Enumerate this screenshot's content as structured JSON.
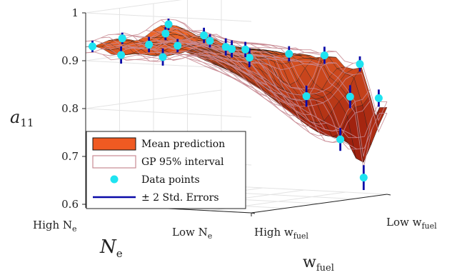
{
  "chart_data": {
    "type": "surface3d",
    "title": "",
    "z_axis": {
      "label_main": "a",
      "label_sub": "11",
      "ticks": [
        "1",
        "0.9",
        "0.8",
        "0.7",
        "0.6"
      ],
      "range": [
        0.6,
        1.0
      ]
    },
    "ne_axis": {
      "label_main": "N",
      "label_sub": "e",
      "low_main": "Low N",
      "low_sub": "e",
      "high_main": "High N",
      "high_sub": "e"
    },
    "wfuel_axis": {
      "label_main": "w",
      "label_sub": "fuel",
      "low_main": "Low w",
      "low_sub": "fuel",
      "high_main": "High w",
      "high_sub": "fuel"
    },
    "legend": {
      "placement": "bottom-left",
      "items": [
        {
          "label": "Mean prediction",
          "kind": "mean"
        },
        {
          "label": "GP 95% interval",
          "kind": "interval"
        },
        {
          "label": "Data points",
          "kind": "points"
        },
        {
          "label": "± 2 Std. Errors",
          "kind": "errors"
        }
      ]
    },
    "data_points": [
      {
        "ne": 0.0,
        "w": 0.05,
        "a11": 0.928,
        "err": 0.006
      },
      {
        "ne": 0.05,
        "w": 0.2,
        "a11": 0.905,
        "err": 0.012
      },
      {
        "ne": 0.18,
        "w": 0.05,
        "a11": 0.948,
        "err": 0.006
      },
      {
        "ne": 0.22,
        "w": 0.3,
        "a11": 0.9,
        "err": 0.012
      },
      {
        "ne": 0.3,
        "w": 0.1,
        "a11": 0.935,
        "err": 0.01
      },
      {
        "ne": 0.35,
        "w": 0.25,
        "a11": 0.928,
        "err": 0.008
      },
      {
        "ne": 0.4,
        "w": 0.1,
        "a11": 0.96,
        "err": 0.008
      },
      {
        "ne": 0.5,
        "w": 0.0,
        "a11": 0.985,
        "err": 0.006
      },
      {
        "ne": 0.55,
        "w": 0.2,
        "a11": 0.955,
        "err": 0.01
      },
      {
        "ne": 0.62,
        "w": 0.45,
        "a11": 0.9,
        "err": 0.014
      },
      {
        "ne": 0.6,
        "w": 0.3,
        "a11": 0.928,
        "err": 0.012
      },
      {
        "ne": 0.75,
        "w": 0.0,
        "a11": 0.955,
        "err": 0.008
      },
      {
        "ne": 0.8,
        "w": 0.1,
        "a11": 0.935,
        "err": 0.012
      },
      {
        "ne": 0.8,
        "w": 0.2,
        "a11": 0.93,
        "err": 0.01
      },
      {
        "ne": 0.9,
        "w": 0.4,
        "a11": 0.915,
        "err": 0.01
      },
      {
        "ne": 0.95,
        "w": 0.6,
        "a11": 0.905,
        "err": 0.012
      },
      {
        "ne": 0.8,
        "w": 0.65,
        "a11": 0.815,
        "err": 0.016
      },
      {
        "ne": 1.0,
        "w": 0.8,
        "a11": 0.88,
        "err": 0.01
      },
      {
        "ne": 0.9,
        "w": 0.85,
        "a11": 0.808,
        "err": 0.018
      },
      {
        "ne": 0.95,
        "w": 1.0,
        "a11": 0.8,
        "err": 0.012
      },
      {
        "ne": 0.8,
        "w": 0.9,
        "a11": 0.715,
        "err": 0.018
      },
      {
        "ne": 0.9,
        "w": 0.95,
        "a11": 0.635,
        "err": 0.02
      }
    ]
  },
  "colors": {
    "surface_high": "#f26a2a",
    "surface_low": "#8c1008",
    "mesh": "#1a1a1a",
    "interval": "#c88a92",
    "points": "#1fe3f0",
    "errors": "#0a0aa8",
    "box": "#222222",
    "grid": "#e3e3e3"
  }
}
